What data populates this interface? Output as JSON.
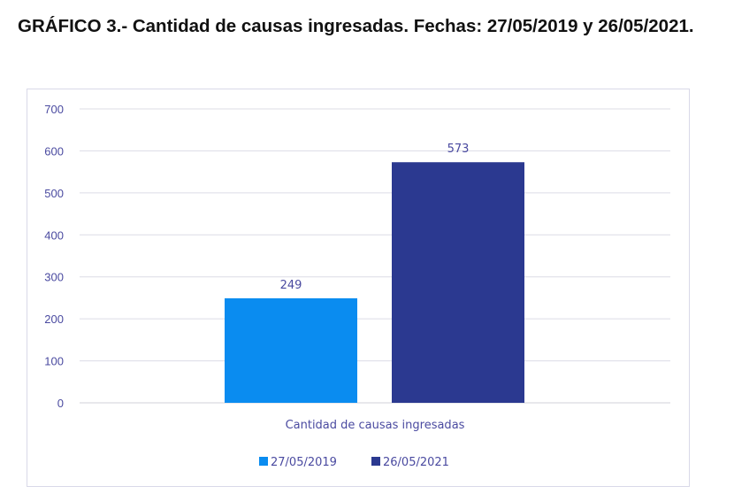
{
  "title": "GRÁFICO 3.- Cantidad de causas ingresadas. Fechas: 27/05/2019 y 26/05/2021.",
  "chart_data": {
    "type": "bar",
    "title": "",
    "categories": [
      "Cantidad de causas ingresadas"
    ],
    "series": [
      {
        "name": "27/05/2019",
        "values": [
          249
        ],
        "color": "#0a8cf0"
      },
      {
        "name": "26/05/2021",
        "values": [
          573
        ],
        "color": "#2b3990"
      }
    ],
    "ylim": [
      0,
      700
    ],
    "yticks": [
      0,
      100,
      200,
      300,
      400,
      500,
      600,
      700
    ],
    "grid": true,
    "legend": "bottom",
    "data_labels": true
  }
}
